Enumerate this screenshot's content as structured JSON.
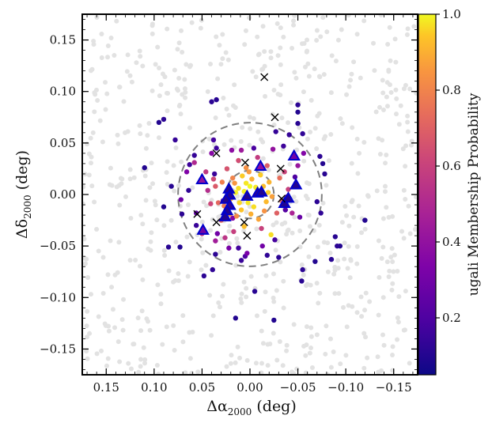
{
  "chart_data": {
    "type": "scatter",
    "xlim": [
      0.175,
      -0.175
    ],
    "ylim": [
      -0.175,
      0.175
    ],
    "x_ticks": [
      0.15,
      0.1,
      0.05,
      0.0,
      -0.05,
      -0.1,
      -0.15
    ],
    "x_tick_labels": [
      "0.15",
      "0.10",
      "0.05",
      "0.00",
      "−0.05",
      "−0.10",
      "−0.15"
    ],
    "y_ticks": [
      0.15,
      0.1,
      0.05,
      0.0,
      -0.05,
      -0.1,
      -0.15
    ],
    "y_tick_labels": [
      "0.15",
      "0.10",
      "0.05",
      "0.00",
      "−0.05",
      "−0.10",
      "−0.15"
    ],
    "xlabel_symbol": "Δα",
    "xlabel_subscript": "2000",
    "xlabel_unit": " (deg)",
    "ylabel_symbol": "Δδ",
    "ylabel_subscript": "2000",
    "ylabel_unit": " (deg)",
    "colorbar": {
      "label": "ugali Membership Probability",
      "range": [
        0.05,
        1.0
      ],
      "ticks": [
        0.2,
        0.4,
        0.6,
        0.8,
        1.0
      ],
      "tick_labels": [
        "0.2",
        "0.4",
        "0.6",
        "0.8",
        "1.0"
      ],
      "colormap": "plasma"
    },
    "circles": [
      {
        "radius_deg": 0.075,
        "center": [
          0,
          0
        ],
        "style": "dashed",
        "color": "#808080"
      },
      {
        "radius_deg": 0.025,
        "center": [
          0,
          0
        ],
        "style": "dashed",
        "color": "#808080"
      }
    ],
    "background_color": "#e2e2e2",
    "background_count": 650,
    "members": [
      [
        0.008,
        0.018,
        0.95
      ],
      [
        0.004,
        0.011,
        0.98
      ],
      [
        -0.002,
        0.015,
        0.9
      ],
      [
        0.012,
        0.006,
        0.97
      ],
      [
        0.016,
        0.011,
        0.85
      ],
      [
        -0.008,
        0.004,
        0.99
      ],
      [
        0.003,
        -0.002,
        0.96
      ],
      [
        -0.014,
        0.008,
        0.93
      ],
      [
        0.02,
        -0.004,
        0.88
      ],
      [
        -0.004,
        -0.012,
        0.97
      ],
      [
        0.009,
        -0.015,
        0.94
      ],
      [
        -0.017,
        -0.007,
        0.92
      ],
      [
        0.024,
        0.004,
        0.9
      ],
      [
        0.001,
        0.022,
        0.86
      ],
      [
        -0.011,
        0.019,
        0.95
      ],
      [
        0.014,
        -0.021,
        0.82
      ],
      [
        -0.02,
        0.012,
        0.91
      ],
      [
        0.006,
        0.003,
        0.99
      ],
      [
        -0.006,
        0.007,
        0.98
      ],
      [
        0.018,
        0.016,
        0.8
      ],
      [
        -0.023,
        -0.002,
        0.87
      ],
      [
        0.011,
        -0.008,
        0.96
      ],
      [
        -0.001,
        -0.019,
        0.9
      ],
      [
        0.027,
        -0.011,
        0.78
      ],
      [
        -0.015,
        -0.016,
        0.84
      ],
      [
        0.004,
        0.026,
        0.83
      ],
      [
        0.021,
        -0.019,
        0.86
      ],
      [
        -0.009,
        -0.024,
        0.88
      ],
      [
        0.015,
        0.002,
        0.99
      ],
      [
        -0.019,
        0.002,
        0.95
      ],
      [
        0.0,
        0.008,
        1.0
      ],
      [
        0.002,
        -0.008,
        0.98
      ],
      [
        -0.022,
        -0.039,
        0.97
      ],
      [
        0.006,
        -0.031,
        0.93
      ],
      [
        0.029,
        0.012,
        0.79
      ],
      [
        0.033,
        -0.008,
        0.72
      ],
      [
        -0.031,
        0.016,
        0.74
      ],
      [
        -0.028,
        -0.018,
        0.7
      ],
      [
        0.036,
        0.008,
        0.68
      ],
      [
        0.024,
        0.025,
        0.66
      ],
      [
        -0.018,
        0.028,
        0.69
      ],
      [
        0.03,
        -0.025,
        0.73
      ],
      [
        -0.033,
        -0.006,
        0.71
      ],
      [
        0.041,
        -0.009,
        0.62
      ],
      [
        -0.04,
        0.005,
        0.6
      ],
      [
        0.012,
        0.033,
        0.64
      ],
      [
        -0.008,
        0.036,
        0.58
      ],
      [
        0.038,
        0.015,
        0.63
      ],
      [
        -0.036,
        0.022,
        0.61
      ],
      [
        0.017,
        -0.036,
        0.59
      ],
      [
        -0.012,
        -0.033,
        0.6
      ],
      [
        0.046,
        0.022,
        0.57
      ],
      [
        0.026,
        -0.042,
        0.55
      ],
      [
        0.044,
        0.004,
        0.52
      ],
      [
        0.05,
        -0.038,
        0.54
      ],
      [
        0.058,
        0.031,
        0.5
      ],
      [
        0.036,
        -0.045,
        0.45
      ],
      [
        -0.05,
        0.028,
        0.42
      ],
      [
        -0.044,
        -0.018,
        0.48
      ],
      [
        0.009,
        0.043,
        0.44
      ],
      [
        -0.024,
        0.044,
        0.4
      ],
      [
        0.019,
        0.043,
        0.38
      ],
      [
        0.04,
        0.04,
        0.36
      ],
      [
        0.066,
        0.022,
        0.34
      ],
      [
        -0.056,
        0.04,
        0.35
      ],
      [
        0.022,
        -0.052,
        0.32
      ],
      [
        -0.013,
        -0.05,
        0.3
      ],
      [
        0.003,
        -0.057,
        0.33
      ],
      [
        0.072,
        -0.005,
        0.28
      ],
      [
        0.056,
        -0.018,
        0.25
      ],
      [
        0.034,
        -0.038,
        0.3
      ],
      [
        -0.052,
        -0.022,
        0.27
      ],
      [
        0.11,
        0.026,
        0.1
      ],
      [
        0.09,
        0.073,
        0.12
      ],
      [
        0.095,
        0.07,
        0.1
      ],
      [
        0.078,
        0.053,
        0.14
      ],
      [
        0.064,
        0.004,
        0.13
      ],
      [
        0.082,
        0.008,
        0.11
      ],
      [
        0.09,
        -0.012,
        0.1
      ],
      [
        0.071,
        -0.019,
        0.12
      ],
      [
        0.085,
        -0.051,
        0.11
      ],
      [
        0.073,
        -0.051,
        0.1
      ],
      [
        0.056,
        -0.03,
        0.15
      ],
      [
        0.048,
        -0.079,
        0.12
      ],
      [
        0.039,
        -0.073,
        0.13
      ],
      [
        0.036,
        -0.058,
        0.12
      ],
      [
        0.038,
        0.053,
        0.18
      ],
      [
        0.035,
        0.045,
        0.16
      ],
      [
        0.037,
        0.02,
        0.15
      ],
      [
        0.04,
        0.09,
        0.12
      ],
      [
        0.035,
        0.092,
        0.11
      ],
      [
        0.063,
        0.029,
        0.16
      ],
      [
        0.058,
        0.038,
        0.14
      ],
      [
        0.028,
        -0.006,
        0.2
      ],
      [
        0.015,
        -0.12,
        0.1
      ],
      [
        0.012,
        -0.052,
        0.17
      ],
      [
        0.009,
        -0.064,
        0.15
      ],
      [
        -0.005,
        -0.094,
        0.11
      ],
      [
        -0.03,
        -0.061,
        0.12
      ],
      [
        -0.025,
        -0.122,
        0.1
      ],
      [
        -0.054,
        -0.084,
        0.11
      ],
      [
        -0.055,
        -0.073,
        0.12
      ],
      [
        -0.068,
        -0.065,
        0.1
      ],
      [
        -0.085,
        -0.063,
        0.11
      ],
      [
        -0.091,
        -0.05,
        0.12
      ],
      [
        -0.094,
        -0.05,
        0.1
      ],
      [
        -0.089,
        -0.041,
        0.11
      ],
      [
        -0.12,
        -0.025,
        0.1
      ],
      [
        -0.074,
        -0.018,
        0.13
      ],
      [
        -0.07,
        -0.007,
        0.12
      ],
      [
        -0.078,
        0.02,
        0.11
      ],
      [
        -0.076,
        0.03,
        0.1
      ],
      [
        -0.073,
        0.037,
        0.12
      ],
      [
        -0.055,
        0.059,
        0.13
      ],
      [
        -0.05,
        0.069,
        0.11
      ],
      [
        -0.05,
        0.08,
        0.1
      ],
      [
        -0.05,
        0.087,
        0.12
      ],
      [
        -0.047,
        0.017,
        0.2
      ],
      [
        -0.041,
        0.058,
        0.14
      ],
      [
        -0.039,
        -0.002,
        0.24
      ],
      [
        -0.037,
        -0.015,
        0.22
      ],
      [
        -0.035,
        0.047,
        0.16
      ],
      [
        -0.027,
        0.061,
        0.14
      ],
      [
        -0.026,
        -0.044,
        0.18
      ],
      [
        -0.018,
        -0.059,
        0.13
      ],
      [
        0.005,
        -0.06,
        0.2
      ],
      [
        0.018,
        -0.023,
        0.35
      ],
      [
        -0.004,
        0.045,
        0.19
      ]
    ],
    "triangles": [
      [
        0.05,
        0.014,
        0.4
      ],
      [
        0.049,
        -0.035,
        0.3
      ],
      [
        0.022,
        0.005,
        0.1
      ],
      [
        0.021,
        -0.001,
        0.1
      ],
      [
        0.025,
        -0.005,
        0.1
      ],
      [
        0.021,
        -0.011,
        0.12
      ],
      [
        0.024,
        -0.016,
        0.1
      ],
      [
        0.026,
        -0.022,
        0.1
      ],
      [
        0.003,
        -0.002,
        0.1
      ],
      [
        -0.008,
        0.001,
        0.12
      ],
      [
        -0.012,
        0.002,
        0.1
      ],
      [
        -0.011,
        0.027,
        0.38
      ],
      [
        -0.046,
        0.037,
        0.3
      ],
      [
        -0.048,
        0.009,
        0.1
      ],
      [
        -0.036,
        -0.009,
        0.1
      ],
      [
        -0.04,
        -0.004,
        0.1
      ]
    ],
    "crosses": [
      [
        -0.015,
        0.114
      ],
      [
        -0.026,
        0.075
      ],
      [
        0.035,
        0.04
      ],
      [
        0.005,
        0.031
      ],
      [
        -0.032,
        0.025
      ],
      [
        0.055,
        -0.019
      ],
      [
        0.035,
        -0.027
      ],
      [
        0.006,
        -0.027
      ],
      [
        0.003,
        -0.04
      ],
      [
        -0.033,
        -0.004
      ]
    ]
  }
}
